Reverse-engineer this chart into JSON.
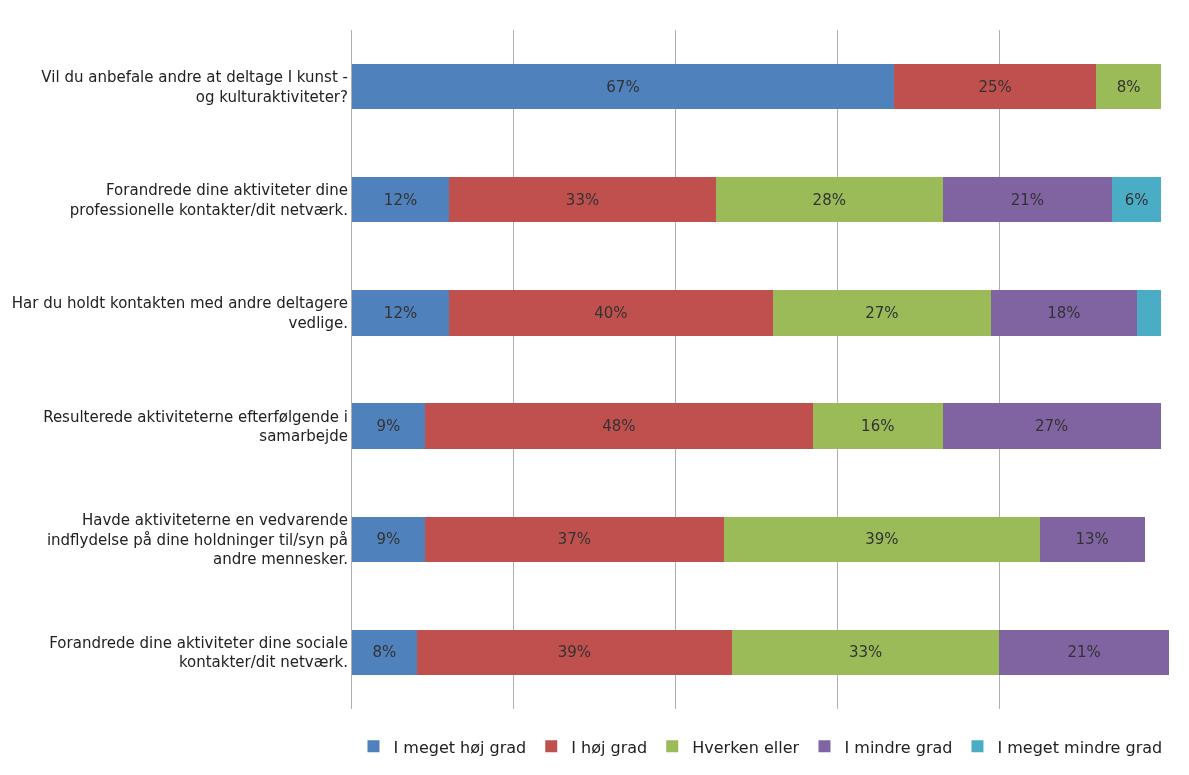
{
  "chart_data": {
    "type": "bar",
    "orientation": "horizontal",
    "stacked": true,
    "categories": [
      "Vil du anbefale andre at deltage I kunst - og kulturaktiviteter?",
      "Forandrede dine aktiviteter dine professionelle kontakter/dit netværk.",
      "Har du holdt kontakten med andre deltagere vedlige.",
      "Resulterede aktiviteterne efterfølgende i samarbejde",
      "Havde aktiviteterne en vedvarende indflydelse på dine holdninger til/syn på andre mennesker.",
      "Forandrede dine aktiviteter dine sociale kontakter/dit netværk."
    ],
    "series": [
      {
        "name": "I meget høj grad",
        "color": "#4f81bd",
        "values": [
          67,
          12,
          12,
          9,
          9,
          8
        ],
        "value_labels": [
          "67%",
          "12%",
          "12%",
          "9%",
          "9%",
          "8%"
        ]
      },
      {
        "name": "I høj grad",
        "color": "#c0504d",
        "values": [
          25,
          33,
          40,
          48,
          37,
          39
        ],
        "value_labels": [
          "25%",
          "33%",
          "40%",
          "48%",
          "37%",
          "39%"
        ]
      },
      {
        "name": "Hverken eller",
        "color": "#9bbb59",
        "values": [
          8,
          28,
          27,
          16,
          39,
          33
        ],
        "value_labels": [
          "8%",
          "28%",
          "27%",
          "16%",
          "39%",
          "33%"
        ]
      },
      {
        "name": "I mindre grad",
        "color": "#8064a2",
        "values": [
          null,
          21,
          18,
          27,
          13,
          21
        ],
        "value_labels": [
          null,
          "21%",
          "18%",
          "27%",
          "13%",
          "21%"
        ]
      },
      {
        "name": "I meget mindre grad",
        "color": "#4bacc6",
        "values": [
          null,
          6,
          3,
          null,
          null,
          null
        ],
        "value_labels": [
          null,
          "6%",
          null,
          null,
          null,
          null
        ]
      }
    ],
    "xlim": [
      0,
      101
    ],
    "xticks": [
      {
        "value": 0,
        "label": null
      },
      {
        "value": 20,
        "label": null
      },
      {
        "value": 40,
        "label": null
      },
      {
        "value": 60,
        "label": null
      },
      {
        "value": 80,
        "label": null
      }
    ],
    "tick_labels": "y",
    "grid": "x",
    "legend": "bottom"
  }
}
